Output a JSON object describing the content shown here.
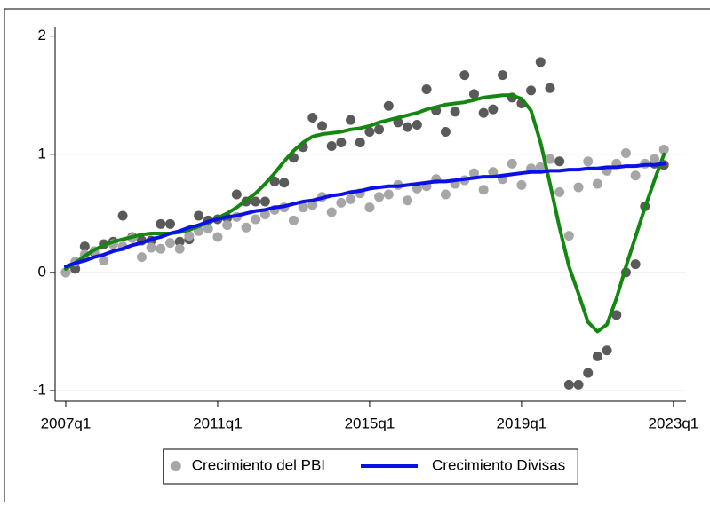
{
  "chart_data": {
    "type": "line",
    "x": [
      2007,
      2007.25,
      2007.5,
      2007.75,
      2008,
      2008.25,
      2008.5,
      2008.75,
      2009,
      2009.25,
      2009.5,
      2009.75,
      2010,
      2010.25,
      2010.5,
      2010.75,
      2011,
      2011.25,
      2011.5,
      2011.75,
      2012,
      2012.25,
      2012.5,
      2012.75,
      2013,
      2013.25,
      2013.5,
      2013.75,
      2014,
      2014.25,
      2014.5,
      2014.75,
      2015,
      2015.25,
      2015.5,
      2015.75,
      2016,
      2016.25,
      2016.5,
      2016.75,
      2017,
      2017.25,
      2017.5,
      2017.75,
      2018,
      2018.25,
      2018.5,
      2018.75,
      2019,
      2019.25,
      2019.5,
      2019.75,
      2020,
      2020.25,
      2020.5,
      2020.75,
      2021,
      2021.25,
      2021.5,
      2021.75,
      2022,
      2022.25,
      2022.5,
      2022.75
    ],
    "series": [
      {
        "mode": "markers",
        "color": "#5a5a5a",
        "values": [
          0.0,
          0.03,
          0.22,
          0.17,
          0.24,
          0.26,
          0.48,
          0.3,
          0.27,
          0.27,
          0.41,
          0.41,
          0.26,
          0.28,
          0.48,
          0.44,
          0.45,
          0.46,
          0.66,
          0.6,
          0.6,
          0.6,
          0.77,
          0.76,
          0.97,
          1.06,
          1.31,
          1.24,
          1.07,
          1.1,
          1.29,
          1.1,
          1.19,
          1.21,
          1.41,
          1.27,
          1.23,
          1.25,
          1.55,
          1.37,
          1.19,
          1.36,
          1.67,
          1.51,
          1.35,
          1.38,
          1.67,
          1.48,
          1.43,
          1.54,
          1.78,
          1.56,
          0.94,
          -0.95,
          -0.95,
          -0.85,
          -0.71,
          -0.66,
          -0.36,
          0.0,
          0.07,
          0.56,
          0.92,
          0.91
        ]
      },
      {
        "name": "Crecimiento del PBI",
        "mode": "markers",
        "color": "#a6a6a6",
        "values": [
          0.0,
          0.09,
          0.15,
          0.18,
          0.1,
          0.24,
          0.22,
          0.29,
          0.13,
          0.21,
          0.2,
          0.25,
          0.2,
          0.31,
          0.35,
          0.37,
          0.3,
          0.4,
          0.47,
          0.38,
          0.45,
          0.49,
          0.53,
          0.55,
          0.44,
          0.55,
          0.57,
          0.64,
          0.51,
          0.59,
          0.62,
          0.67,
          0.55,
          0.64,
          0.66,
          0.74,
          0.61,
          0.71,
          0.73,
          0.79,
          0.66,
          0.75,
          0.78,
          0.84,
          0.7,
          0.85,
          0.79,
          0.92,
          0.74,
          0.88,
          0.89,
          0.96,
          0.68,
          0.31,
          0.72,
          0.94,
          0.75,
          0.86,
          0.92,
          1.01,
          0.82,
          0.92,
          0.96,
          1.04
        ]
      },
      {
        "mode": "lines",
        "color": "#13870f",
        "values": [
          0.03,
          0.08,
          0.14,
          0.19,
          0.23,
          0.26,
          0.28,
          0.3,
          0.32,
          0.33,
          0.33,
          0.33,
          0.34,
          0.36,
          0.39,
          0.42,
          0.46,
          0.5,
          0.55,
          0.61,
          0.67,
          0.75,
          0.84,
          0.94,
          1.03,
          1.1,
          1.15,
          1.17,
          1.18,
          1.19,
          1.21,
          1.22,
          1.24,
          1.27,
          1.29,
          1.31,
          1.33,
          1.35,
          1.38,
          1.4,
          1.42,
          1.43,
          1.44,
          1.46,
          1.48,
          1.49,
          1.5,
          1.5,
          1.47,
          1.37,
          1.1,
          0.75,
          0.38,
          0.05,
          -0.18,
          -0.42,
          -0.5,
          -0.44,
          -0.22,
          0.05,
          0.3,
          0.55,
          0.78,
          1.0
        ]
      },
      {
        "name": "Crecimiento Divisas",
        "mode": "lines",
        "color": "#0a10e6",
        "values": [
          0.05,
          0.08,
          0.1,
          0.13,
          0.15,
          0.18,
          0.2,
          0.23,
          0.25,
          0.28,
          0.3,
          0.33,
          0.35,
          0.38,
          0.4,
          0.43,
          0.45,
          0.47,
          0.48,
          0.5,
          0.52,
          0.53,
          0.55,
          0.56,
          0.58,
          0.6,
          0.61,
          0.63,
          0.65,
          0.66,
          0.68,
          0.69,
          0.71,
          0.72,
          0.73,
          0.73,
          0.74,
          0.75,
          0.76,
          0.77,
          0.77,
          0.78,
          0.79,
          0.8,
          0.81,
          0.81,
          0.82,
          0.83,
          0.84,
          0.85,
          0.85,
          0.86,
          0.86,
          0.87,
          0.87,
          0.88,
          0.88,
          0.89,
          0.89,
          0.9,
          0.9,
          0.91,
          0.91,
          0.92
        ]
      }
    ],
    "xlim": [
      2006.72,
      2023.33
    ],
    "xticks": [
      {
        "value": 2007,
        "label": "2007q1"
      },
      {
        "value": 2011,
        "label": "2011q1"
      },
      {
        "value": 2015,
        "label": "2015q1"
      },
      {
        "value": 2019,
        "label": "2019q1"
      },
      {
        "value": 2023,
        "label": "2023q1"
      }
    ],
    "ylim": [
      -1.09,
      2.08
    ],
    "yticks": [
      -1,
      0,
      1,
      2
    ],
    "grid": true,
    "legend": "bottom"
  }
}
